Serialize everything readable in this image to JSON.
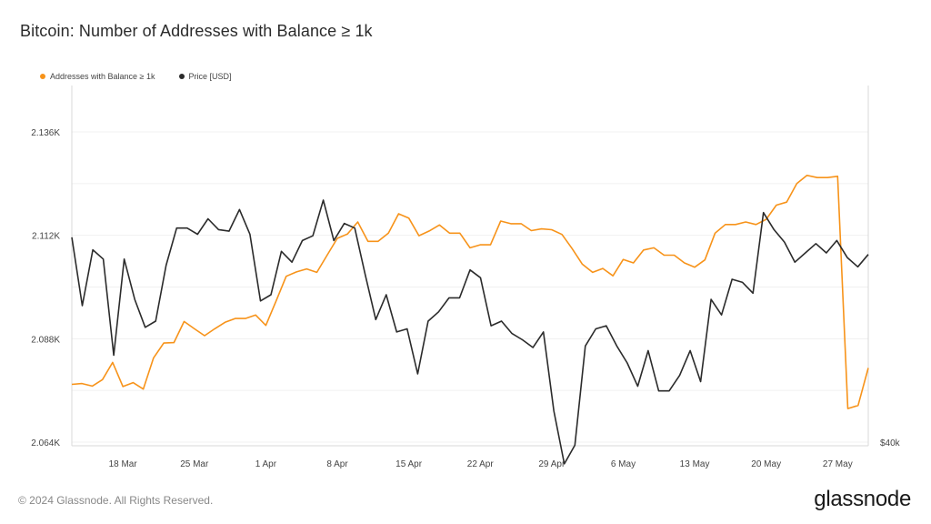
{
  "title": "Bitcoin: Number of Addresses with Balance ≥ 1k",
  "footer": "© 2024 Glassnode. All Rights Reserved.",
  "brand": "glassnode",
  "chart_data": {
    "type": "line",
    "xlabels": [
      "18 Mar",
      "25 Mar",
      "1 Apr",
      "8 Apr",
      "15 Apr",
      "22 Apr",
      "29 Apr",
      "6 May",
      "13 May",
      "20 May",
      "27 May"
    ],
    "xlabel_positions": [
      5,
      12,
      19,
      26,
      33,
      40,
      47,
      54,
      61,
      68,
      75
    ],
    "ylabel_left": "",
    "yticks_left": [
      "2.064K",
      "2.088K",
      "2.112K",
      "2.136K"
    ],
    "ytick_values_left": [
      2064,
      2088,
      2112,
      2136
    ],
    "ylim_left": [
      2064,
      2136
    ],
    "right_axis_label": "$40k",
    "ylim_right": [
      55000,
      75000
    ],
    "colors": {
      "addresses": "#f7931a",
      "price": "#2b2b2b",
      "grid": "#f0f0f0",
      "axis": "#d8d8d8"
    },
    "series": [
      {
        "name": "Addresses with Balance ≥ 1k",
        "color": "#f7931a",
        "axis": "left",
        "values": [
          2077.4,
          2077.6,
          2077.0,
          2078.5,
          2082.5,
          2076.9,
          2077.8,
          2076.3,
          2083.5,
          2087.0,
          2087.1,
          2092.0,
          2090.3,
          2088.7,
          2090.3,
          2091.8,
          2092.7,
          2092.7,
          2093.5,
          2091.1,
          2096.7,
          2102.5,
          2103.5,
          2104.2,
          2103.4,
          2107.4,
          2111.3,
          2112.3,
          2115.1,
          2110.6,
          2110.6,
          2112.5,
          2117.0,
          2116.0,
          2111.9,
          2113.0,
          2114.4,
          2112.5,
          2112.5,
          2109.1,
          2109.8,
          2109.8,
          2115.3,
          2114.7,
          2114.7,
          2113.1,
          2113.5,
          2113.3,
          2112.2,
          2108.9,
          2105.3,
          2103.4,
          2104.3,
          2102.6,
          2106.4,
          2105.6,
          2108.6,
          2109.1,
          2107.4,
          2107.4,
          2105.6,
          2104.6,
          2106.3,
          2112.5,
          2114.5,
          2114.5,
          2115.1,
          2114.5,
          2115.7,
          2119.0,
          2119.7,
          2124.0,
          2125.9,
          2125.4,
          2125.4,
          2125.7,
          2071.8,
          2072.5,
          2081.2
        ]
      },
      {
        "name": "Price [USD]",
        "color": "#2b2b2b",
        "axis": "right",
        "values": [
          68200,
          63800,
          67400,
          66800,
          60600,
          66800,
          64200,
          62400,
          62800,
          66400,
          68800,
          68800,
          68400,
          69400,
          68700,
          68600,
          70000,
          68400,
          64100,
          64500,
          67300,
          66600,
          68000,
          68300,
          70600,
          68000,
          69100,
          68800,
          65800,
          62900,
          64500,
          62100,
          62300,
          59400,
          62800,
          63400,
          64300,
          64300,
          66100,
          65600,
          62500,
          62800,
          62000,
          61600,
          61100,
          62100,
          57000,
          53600,
          54800,
          61200,
          62300,
          62500,
          61200,
          60100,
          58600,
          60900,
          58300,
          58300,
          59300,
          60900,
          58900,
          64200,
          63200,
          65500,
          65300,
          64600,
          69800,
          68700,
          67900,
          66600,
          67200,
          67800,
          67200,
          68000,
          66900,
          66300,
          67100
        ]
      }
    ]
  }
}
